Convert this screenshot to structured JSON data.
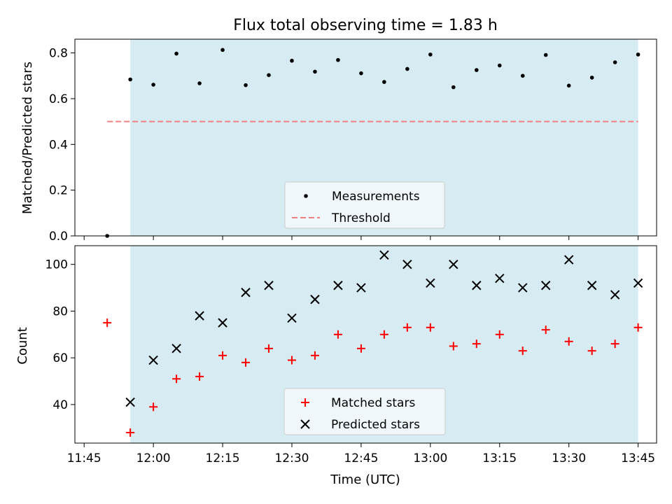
{
  "colors": {
    "shade": "#add8e6",
    "threshold": "#f08080",
    "matched": "#ff0000",
    "predicted": "#000000",
    "measurement": "#000000",
    "legend_bg": "#f5f9fb"
  },
  "chart_data": [
    {
      "type": "scatter",
      "title": "Flux total observing time = 1.83 h",
      "xlabel": "",
      "ylabel": "Matched/Predicted stars",
      "ylim": [
        0.0,
        0.86
      ],
      "xlim_minutes": [
        -2,
        124
      ],
      "shaded_span": [
        "11:55",
        "13:45"
      ],
      "y_ticks": [
        "0.0",
        "0.2",
        "0.4",
        "0.6",
        "0.8"
      ],
      "y_tick_values": [
        0.0,
        0.2,
        0.4,
        0.6,
        0.8
      ],
      "legend_position": "lower center",
      "legend": [
        "Measurements",
        "Threshold"
      ],
      "series": [
        {
          "name": "Measurements",
          "marker": "dot",
          "x": [
            "11:50",
            "11:55",
            "12:00",
            "12:05",
            "12:10",
            "12:15",
            "12:20",
            "12:25",
            "12:30",
            "12:35",
            "12:40",
            "12:45",
            "12:50",
            "12:55",
            "13:00",
            "13:05",
            "13:10",
            "13:15",
            "13:20",
            "13:25",
            "13:30",
            "13:35",
            "13:40",
            "13:45"
          ],
          "values": [
            0.0,
            0.684,
            0.661,
            0.797,
            0.667,
            0.813,
            0.659,
            0.703,
            0.766,
            0.718,
            0.769,
            0.711,
            0.673,
            0.73,
            0.793,
            0.65,
            0.725,
            0.745,
            0.7,
            0.791,
            0.657,
            0.692,
            0.759,
            0.793
          ]
        },
        {
          "name": "Threshold",
          "style": "dashed-line",
          "x": [
            "11:50",
            "13:45"
          ],
          "values": [
            0.5,
            0.5
          ]
        }
      ]
    },
    {
      "type": "scatter",
      "title": "",
      "xlabel": "Time (UTC)",
      "ylabel": "Count",
      "ylim": [
        23.5,
        108
      ],
      "xlim_minutes": [
        -2,
        124
      ],
      "shaded_span": [
        "11:55",
        "13:45"
      ],
      "y_ticks": [
        "40",
        "60",
        "80",
        "100"
      ],
      "y_tick_values": [
        40,
        60,
        80,
        100
      ],
      "x_ticks": [
        "11:45",
        "12:00",
        "12:15",
        "12:30",
        "12:45",
        "13:00",
        "13:15",
        "13:30",
        "13:45"
      ],
      "legend_position": "lower center",
      "legend": [
        "Matched stars",
        "Predicted stars"
      ],
      "series": [
        {
          "name": "Matched stars",
          "marker": "plus",
          "x": [
            "11:50",
            "11:55",
            "12:00",
            "12:05",
            "12:10",
            "12:15",
            "12:20",
            "12:25",
            "12:30",
            "12:35",
            "12:40",
            "12:45",
            "12:50",
            "12:55",
            "13:00",
            "13:05",
            "13:10",
            "13:15",
            "13:20",
            "13:25",
            "13:30",
            "13:35",
            "13:40",
            "13:45"
          ],
          "values": [
            75,
            28,
            39,
            51,
            52,
            61,
            58,
            64,
            59,
            61,
            70,
            64,
            70,
            73,
            73,
            65,
            66,
            70,
            63,
            72,
            67,
            63,
            66,
            73
          ]
        },
        {
          "name": "Predicted stars",
          "marker": "x",
          "x": [
            "11:55",
            "12:00",
            "12:05",
            "12:10",
            "12:15",
            "12:20",
            "12:25",
            "12:30",
            "12:35",
            "12:40",
            "12:45",
            "12:50",
            "12:55",
            "13:00",
            "13:05",
            "13:10",
            "13:15",
            "13:20",
            "13:25",
            "13:30",
            "13:35",
            "13:40",
            "13:45"
          ],
          "values": [
            41,
            59,
            64,
            78,
            75,
            88,
            91,
            77,
            85,
            91,
            90,
            104,
            100,
            92,
            100,
            91,
            94,
            90,
            91,
            102,
            91,
            87,
            92
          ]
        }
      ]
    }
  ]
}
